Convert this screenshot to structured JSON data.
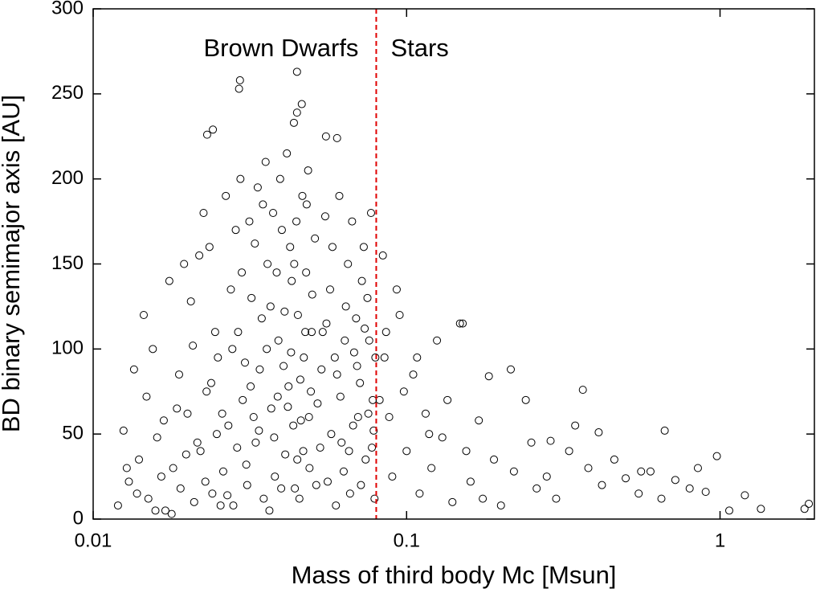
{
  "chart_data": {
    "type": "scatter",
    "xlabel": "Mass of third body Mc [Msun]",
    "ylabel": "BD binary semimajor axis [AU]",
    "annotations": [
      "Brown Dwarfs",
      "Stars"
    ],
    "vline": 0.08,
    "vline_color": "#e00000",
    "xscale": "log",
    "color": "#000000",
    "xlim": [
      0.01,
      2
    ],
    "xticks": [
      0.01,
      0.1,
      1
    ],
    "ylim": [
      0,
      300
    ],
    "yticks": [
      0,
      50,
      100,
      150,
      200,
      250,
      300
    ],
    "x": [
      0.012,
      0.013,
      0.014,
      0.015,
      0.016,
      0.017,
      0.018,
      0.019,
      0.02,
      0.021,
      0.022,
      0.023,
      0.024,
      0.025,
      0.026,
      0.027,
      0.028,
      0.029,
      0.03,
      0.031,
      0.032,
      0.033,
      0.034,
      0.035,
      0.036,
      0.037,
      0.038,
      0.039,
      0.04,
      0.041,
      0.042,
      0.043,
      0.044,
      0.045,
      0.046,
      0.047,
      0.048,
      0.049,
      0.05,
      0.052,
      0.054,
      0.056,
      0.058,
      0.06,
      0.062,
      0.064,
      0.066,
      0.068,
      0.07,
      0.072,
      0.074,
      0.076,
      0.078,
      0.079,
      0.0125,
      0.0135,
      0.0145,
      0.0155,
      0.0165,
      0.0175,
      0.0185,
      0.0195,
      0.0205,
      0.0215,
      0.0225,
      0.0235,
      0.0245,
      0.0255,
      0.0265,
      0.0275,
      0.0285,
      0.0295,
      0.0305,
      0.0315,
      0.0325,
      0.0335,
      0.0345,
      0.0355,
      0.0365,
      0.0375,
      0.0385,
      0.0395,
      0.0405,
      0.0415,
      0.0425,
      0.0435,
      0.0445,
      0.0455,
      0.0465,
      0.0475,
      0.0485,
      0.0495,
      0.051,
      0.053,
      0.055,
      0.057,
      0.059,
      0.061,
      0.063,
      0.065,
      0.067,
      0.069,
      0.071,
      0.073,
      0.075,
      0.077,
      0.0785,
      0.0128,
      0.0138,
      0.0148,
      0.0447,
      0.0294,
      0.0292,
      0.0241,
      0.0231,
      0.06,
      0.0553,
      0.0447,
      0.0463,
      0.0437,
      0.0158,
      0.0168,
      0.0178,
      0.0188,
      0.0198,
      0.0208,
      0.0218,
      0.0228,
      0.0238,
      0.0248,
      0.0258,
      0.0268,
      0.0278,
      0.0288,
      0.0298,
      0.0308,
      0.0318,
      0.0328,
      0.0338,
      0.0348,
      0.0358,
      0.0368,
      0.0378,
      0.0388,
      0.0398,
      0.0408,
      0.0418,
      0.0428,
      0.0438,
      0.0448,
      0.0458,
      0.0468,
      0.0478,
      0.0488,
      0.0498,
      0.0515,
      0.0535,
      0.0555,
      0.0575,
      0.0595,
      0.0615,
      0.0635,
      0.0655,
      0.0675,
      0.0695,
      0.0715,
      0.0735,
      0.0755,
      0.0775,
      0.0795,
      0.084,
      0.093,
      0.151,
      0.148,
      0.183,
      0.215,
      0.365,
      0.288,
      0.345,
      0.41,
      0.666,
      0.977,
      1.92,
      1.86,
      1.35,
      1.07,
      0.085,
      0.088,
      0.09,
      0.095,
      0.1,
      0.105,
      0.11,
      0.115,
      0.12,
      0.125,
      0.13,
      0.14,
      0.16,
      0.17,
      0.19,
      0.2,
      0.22,
      0.24,
      0.26,
      0.28,
      0.3,
      0.33,
      0.38,
      0.42,
      0.46,
      0.5,
      0.55,
      0.6,
      0.65,
      0.72,
      0.8,
      0.85,
      0.9,
      1.2,
      0.082,
      0.086,
      0.098,
      0.108,
      0.118,
      0.135,
      0.155,
      0.175,
      0.25,
      0.56
    ],
    "values": [
      8,
      22,
      35,
      12,
      48,
      5,
      30,
      18,
      62,
      10,
      40,
      75,
      15,
      95,
      28,
      55,
      8,
      110,
      70,
      20,
      130,
      45,
      88,
      12,
      150,
      65,
      25,
      105,
      170,
      38,
      78,
      140,
      18,
      120,
      58,
      95,
      185,
      30,
      132,
      68,
      110,
      22,
      160,
      85,
      45,
      125,
      15,
      98,
      60,
      140,
      35,
      105,
      70,
      12,
      52,
      88,
      120,
      100,
      25,
      140,
      65,
      150,
      128,
      45,
      180,
      160,
      110,
      8,
      190,
      135,
      170,
      200,
      92,
      175,
      60,
      195,
      118,
      210,
      5,
      180,
      145,
      200,
      90,
      215,
      160,
      55,
      175,
      12,
      190,
      110,
      205,
      75,
      165,
      42,
      178,
      135,
      95,
      190,
      28,
      150,
      175,
      118,
      80,
      160,
      130,
      180,
      52,
      30,
      15,
      72,
      263,
      258,
      253,
      229,
      226,
      224,
      225,
      239,
      244,
      233,
      5,
      58,
      3,
      85,
      38,
      102,
      155,
      22,
      80,
      50,
      62,
      14,
      100,
      42,
      145,
      32,
      78,
      162,
      52,
      185,
      100,
      125,
      48,
      72,
      18,
      122,
      66,
      98,
      150,
      35,
      82,
      40,
      145,
      60,
      110,
      20,
      88,
      115,
      50,
      8,
      72,
      105,
      40,
      55,
      90,
      20,
      112,
      62,
      42,
      95,
      155,
      135,
      115,
      115,
      84,
      88,
      76,
      46,
      55,
      51,
      52,
      37,
      9,
      6,
      6,
      5,
      95,
      60,
      25,
      120,
      40,
      85,
      15,
      62,
      30,
      105,
      48,
      10,
      22,
      58,
      35,
      8,
      28,
      70,
      18,
      25,
      12,
      40,
      30,
      20,
      35,
      24,
      15,
      28,
      12,
      23,
      18,
      30,
      16,
      14,
      70,
      110,
      75,
      95,
      50,
      70,
      40,
      12,
      45,
      28
    ]
  }
}
